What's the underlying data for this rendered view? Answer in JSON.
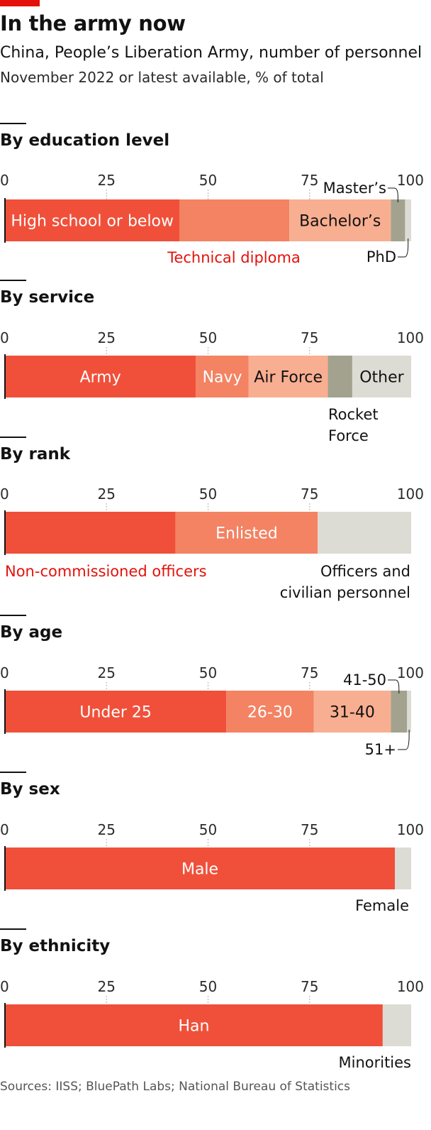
{
  "title": "In the army now",
  "subtitle": "China, People’s Liberation Army, number of personnel",
  "subsubtitle": "November 2022 or latest available, % of total",
  "source": "Sources: IISS; BluePath Labs; National Bureau of Statistics",
  "colors": {
    "accent": "#e3120b",
    "red": "#f0503a",
    "salmon": "#f38363",
    "peach": "#f8ae90",
    "grey": "#a2a28f",
    "lightgrey": "#dcdcd4"
  },
  "chart_data": [
    {
      "type": "bar",
      "orientation": "horizontal-stacked",
      "title": "By education level",
      "ticks": [
        "0",
        "25",
        "50",
        "75",
        "100"
      ],
      "xlim": [
        0,
        100
      ],
      "segments": [
        {
          "name": "High school or below",
          "value": 43,
          "color": "red",
          "label": "High school or below"
        },
        {
          "name": "Technical diploma",
          "value": 27,
          "color": "salmon",
          "label": "Technical diploma"
        },
        {
          "name": "Bachelor’s",
          "value": 25,
          "color": "peach",
          "label": "Bachelor’s"
        },
        {
          "name": "Master’s",
          "value": 3.5,
          "color": "grey",
          "label": "Master’s"
        },
        {
          "name": "PhD",
          "value": 1.5,
          "color": "lightgrey",
          "label": "PhD"
        }
      ]
    },
    {
      "type": "bar",
      "orientation": "horizontal-stacked",
      "title": "By service",
      "ticks": [
        "0",
        "25",
        "50",
        "75",
        "100"
      ],
      "xlim": [
        0,
        100
      ],
      "segments": [
        {
          "name": "Army",
          "value": 47,
          "color": "red",
          "label": "Army"
        },
        {
          "name": "Navy",
          "value": 13,
          "color": "salmon",
          "label": "Navy"
        },
        {
          "name": "Air Force",
          "value": 19.5,
          "color": "peach",
          "label": "Air Force"
        },
        {
          "name": "Rocket Force",
          "value": 6,
          "color": "grey",
          "label": [
            "Rocket",
            "Force"
          ]
        },
        {
          "name": "Other",
          "value": 14.5,
          "color": "lightgrey",
          "label": "Other"
        }
      ]
    },
    {
      "type": "bar",
      "orientation": "horizontal-stacked",
      "title": "By rank",
      "ticks": [
        "0",
        "25",
        "50",
        "75",
        "100"
      ],
      "xlim": [
        0,
        100
      ],
      "segments": [
        {
          "name": "Non-commissioned officers",
          "value": 42,
          "color": "red",
          "label": "Non-commissioned officers"
        },
        {
          "name": "Enlisted",
          "value": 35,
          "color": "salmon",
          "label": "Enlisted"
        },
        {
          "name": "Officers and civilian personnel",
          "value": 23,
          "color": "lightgrey",
          "label": [
            "Officers and",
            "civilian personnel"
          ]
        }
      ]
    },
    {
      "type": "bar",
      "orientation": "horizontal-stacked",
      "title": "By age",
      "ticks": [
        "0",
        "25",
        "50",
        "75",
        "100"
      ],
      "xlim": [
        0,
        100
      ],
      "segments": [
        {
          "name": "Under 25",
          "value": 54.5,
          "color": "red",
          "label": "Under 25"
        },
        {
          "name": "26-30",
          "value": 21.5,
          "color": "salmon",
          "label": "26-30"
        },
        {
          "name": "31-40",
          "value": 19,
          "color": "peach",
          "label": "31-40"
        },
        {
          "name": "41-50",
          "value": 4,
          "color": "grey",
          "label": "41-50"
        },
        {
          "name": "51+",
          "value": 1,
          "color": "lightgrey",
          "label": "51+"
        }
      ]
    },
    {
      "type": "bar",
      "orientation": "horizontal-stacked",
      "title": "By sex",
      "ticks": [
        "0",
        "25",
        "50",
        "75",
        "100"
      ],
      "xlim": [
        0,
        100
      ],
      "segments": [
        {
          "name": "Male",
          "value": 96,
          "color": "red",
          "label": "Male"
        },
        {
          "name": "Female",
          "value": 4,
          "color": "lightgrey",
          "label": "Female"
        }
      ]
    },
    {
      "type": "bar",
      "orientation": "horizontal-stacked",
      "title": "By ethnicity",
      "ticks": [
        "0",
        "25",
        "50",
        "75",
        "100"
      ],
      "xlim": [
        0,
        100
      ],
      "segments": [
        {
          "name": "Han",
          "value": 93,
          "color": "red",
          "label": "Han"
        },
        {
          "name": "Minorities",
          "value": 7,
          "color": "lightgrey",
          "label": "Minorities"
        }
      ]
    }
  ]
}
